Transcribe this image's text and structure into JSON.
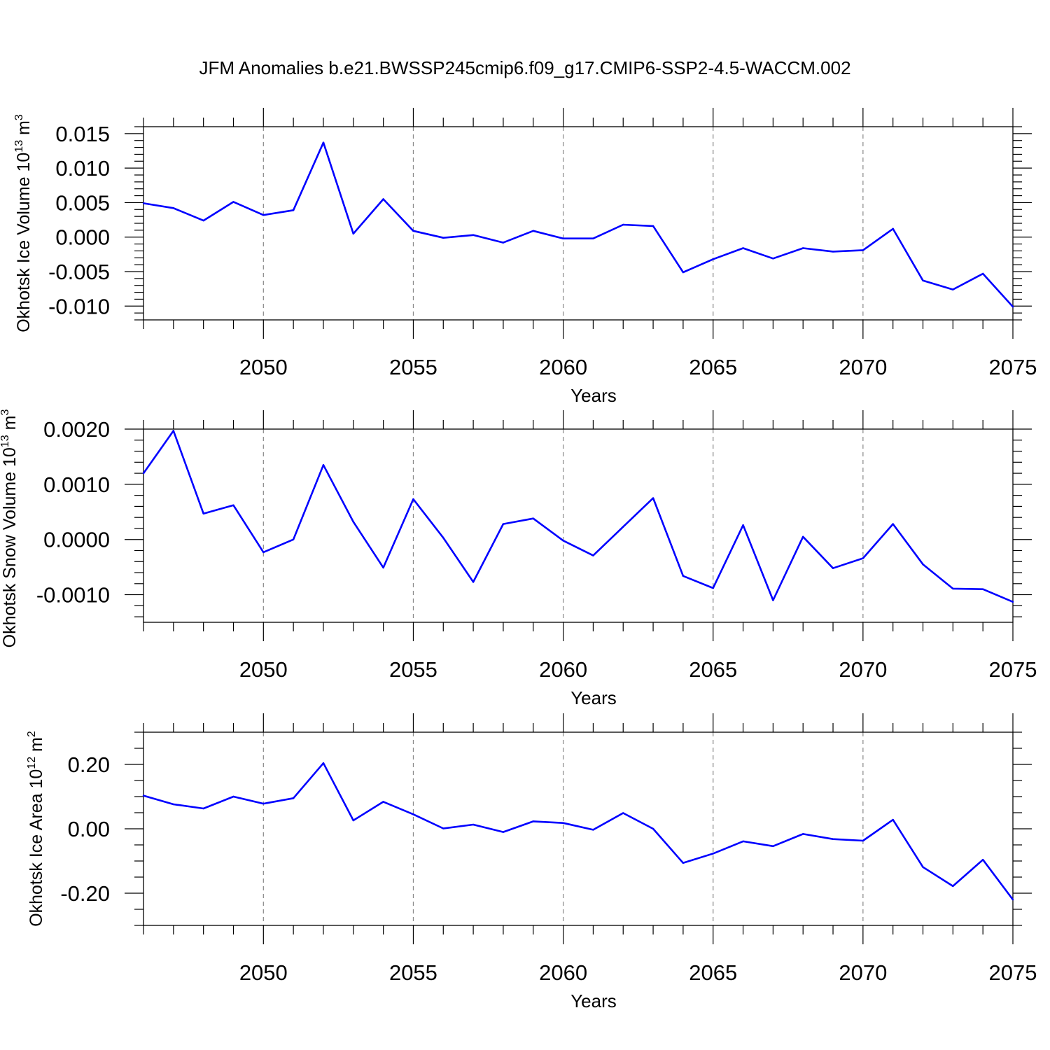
{
  "title": "JFM Anomalies b.e21.BWSSP245cmip6.f09_g17.CMIP6-SSP2-4.5-WACCM.002",
  "colors": {
    "line": "#0000ff",
    "axis": "#000000",
    "grid": "#888888"
  },
  "chart_data": [
    {
      "type": "line",
      "ylabel": {
        "main": "Okhotsk Ice Volume 10",
        "exp": "13",
        "unit": " m",
        "unit_exp": "3"
      },
      "xlabel": "Years",
      "xlim": [
        2046,
        2075
      ],
      "ylim": [
        -0.012,
        0.016
      ],
      "xticks": [
        2050,
        2055,
        2060,
        2065,
        2070,
        2075
      ],
      "yticks": [
        -0.01,
        -0.005,
        0.0,
        0.005,
        0.01,
        0.015
      ],
      "ytick_labels": [
        "-0.010",
        "-0.005",
        "0.000",
        "0.005",
        "0.010",
        "0.015"
      ],
      "yminor_step": 0.001,
      "x": [
        2046,
        2047,
        2048,
        2049,
        2050,
        2051,
        2052,
        2053,
        2054,
        2055,
        2056,
        2057,
        2058,
        2059,
        2060,
        2061,
        2062,
        2063,
        2064,
        2065,
        2066,
        2067,
        2068,
        2069,
        2070,
        2071,
        2072,
        2073,
        2074,
        2075
      ],
      "values": [
        0.0049,
        0.0042,
        0.0024,
        0.0051,
        0.0032,
        0.0039,
        0.0137,
        0.0005,
        0.0055,
        0.0009,
        -0.0001,
        0.0003,
        -0.0008,
        0.0009,
        -0.0002,
        -0.0002,
        0.0018,
        0.0016,
        -0.0051,
        -0.0032,
        -0.0016,
        -0.0031,
        -0.0016,
        -0.0021,
        -0.0019,
        0.0012,
        -0.0063,
        -0.0076,
        -0.0053,
        -0.0101
      ]
    },
    {
      "type": "line",
      "ylabel": {
        "main": "Okhotsk Snow Volume 10",
        "exp": "13",
        "unit": " m",
        "unit_exp": "3"
      },
      "xlabel": "Years",
      "xlim": [
        2046,
        2075
      ],
      "ylim": [
        -0.0015,
        0.002
      ],
      "xticks": [
        2050,
        2055,
        2060,
        2065,
        2070,
        2075
      ],
      "yticks": [
        -0.001,
        0.0,
        0.001,
        0.002
      ],
      "ytick_labels": [
        "-0.0010",
        "0.0000",
        "0.0010",
        "0.0020"
      ],
      "yminor_step": 0.0002,
      "x": [
        2046,
        2047,
        2048,
        2049,
        2050,
        2051,
        2052,
        2053,
        2054,
        2055,
        2056,
        2057,
        2058,
        2059,
        2060,
        2061,
        2062,
        2063,
        2064,
        2065,
        2066,
        2067,
        2068,
        2069,
        2070,
        2071,
        2072,
        2073,
        2074,
        2075
      ],
      "values": [
        0.0012,
        0.00197,
        0.00047,
        0.00062,
        -0.00023,
        0.0,
        0.00135,
        0.00032,
        -0.00051,
        0.00073,
        3e-05,
        -0.00077,
        0.00028,
        0.00038,
        -2e-05,
        -0.00029,
        0.00023,
        0.00075,
        -0.00066,
        -0.00088,
        0.00026,
        -0.0011,
        5e-05,
        -0.00052,
        -0.00034,
        0.00028,
        -0.00045,
        -0.00089,
        -0.0009,
        -0.00113
      ]
    },
    {
      "type": "line",
      "ylabel": {
        "main": "Okhotsk Ice Area 10",
        "exp": "12",
        "unit": " m",
        "unit_exp": "2"
      },
      "xlabel": "Years",
      "xlim": [
        2046,
        2075
      ],
      "ylim": [
        -0.3,
        0.3
      ],
      "xticks": [
        2050,
        2055,
        2060,
        2065,
        2070,
        2075
      ],
      "yticks": [
        -0.2,
        0.0,
        0.2
      ],
      "ytick_labels": [
        "-0.20",
        "0.00",
        "0.20"
      ],
      "yminor_step": 0.05,
      "x": [
        2046,
        2047,
        2048,
        2049,
        2050,
        2051,
        2052,
        2053,
        2054,
        2055,
        2056,
        2057,
        2058,
        2059,
        2060,
        2061,
        2062,
        2063,
        2064,
        2065,
        2066,
        2067,
        2068,
        2069,
        2070,
        2071,
        2072,
        2073,
        2074,
        2075
      ],
      "values": [
        0.103,
        0.076,
        0.063,
        0.1,
        0.078,
        0.095,
        0.204,
        0.026,
        0.084,
        0.045,
        0.001,
        0.013,
        -0.01,
        0.023,
        0.018,
        -0.003,
        0.049,
        0.0,
        -0.106,
        -0.077,
        -0.039,
        -0.054,
        -0.016,
        -0.032,
        -0.037,
        0.028,
        -0.119,
        -0.178,
        -0.096,
        -0.22
      ]
    }
  ]
}
